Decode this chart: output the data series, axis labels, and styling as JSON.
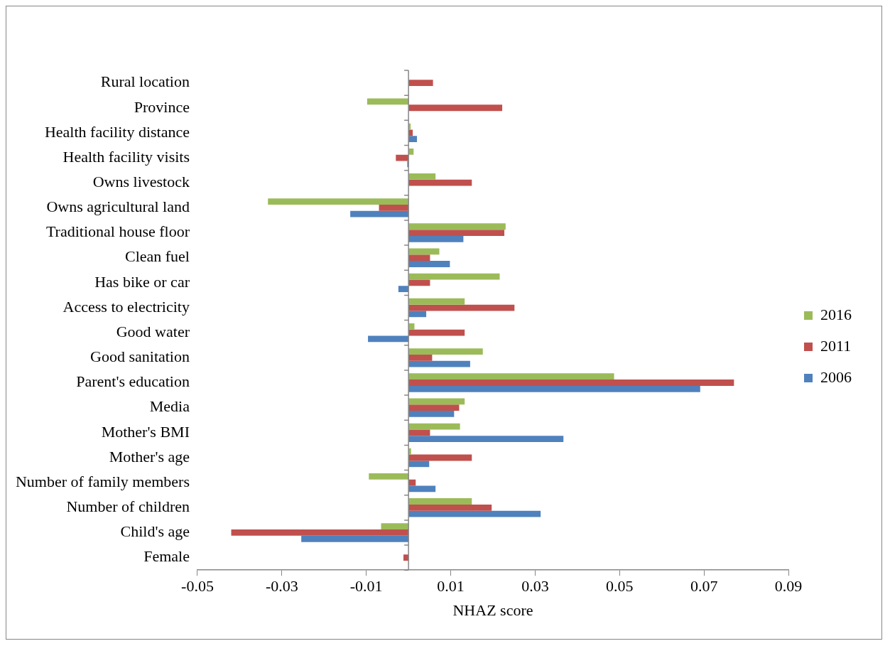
{
  "chart_data": {
    "type": "bar",
    "orientation": "horizontal",
    "xlabel": "NHAZ score",
    "categories": [
      "Rural location",
      "Province",
      "Health facility distance",
      "Health facility visits",
      "Owns livestock",
      "Owns agricultural land",
      "Traditional house floor",
      "Clean fuel",
      "Has bike or car",
      "Access to electricity",
      "Good water",
      "Good sanitation",
      "Parent's education",
      "Media",
      "Mother's BMI",
      "Mother's age",
      "Number of family members",
      "Number of children",
      "Child's age",
      "Female"
    ],
    "series": [
      {
        "name": "2016",
        "color": "#9bbb59",
        "values": [
          null,
          -0.0098,
          0.0005,
          0.0012,
          0.0064,
          -0.0333,
          0.023,
          0.0073,
          0.0216,
          0.0133,
          0.0014,
          0.0176,
          0.0487,
          0.0133,
          0.0122,
          0.0006,
          -0.0094,
          0.015,
          -0.0065,
          null
        ]
      },
      {
        "name": "2011",
        "color": "#c0504d",
        "values": [
          0.0058,
          0.0222,
          0.001,
          -0.003,
          0.015,
          -0.007,
          0.0227,
          0.0051,
          0.0051,
          0.0251,
          0.0133,
          0.0056,
          0.0771,
          0.012,
          0.0051,
          0.015,
          0.0017,
          0.0197,
          -0.042,
          -0.0012
        ]
      },
      {
        "name": "2006",
        "color": "#4f81bd",
        "values": [
          null,
          null,
          0.002,
          -0.0003,
          null,
          -0.0138,
          0.013,
          0.0098,
          -0.0024,
          0.0042,
          -0.0096,
          0.0146,
          0.0691,
          0.0108,
          0.0367,
          0.0049,
          0.0064,
          0.0313,
          -0.0254,
          null
        ]
      }
    ],
    "xlim": [
      -0.05,
      0.09
    ],
    "xticks": [
      -0.05,
      -0.03,
      -0.01,
      0.01,
      0.03,
      0.05,
      0.07,
      0.09
    ],
    "grid": false,
    "legend": "right"
  }
}
